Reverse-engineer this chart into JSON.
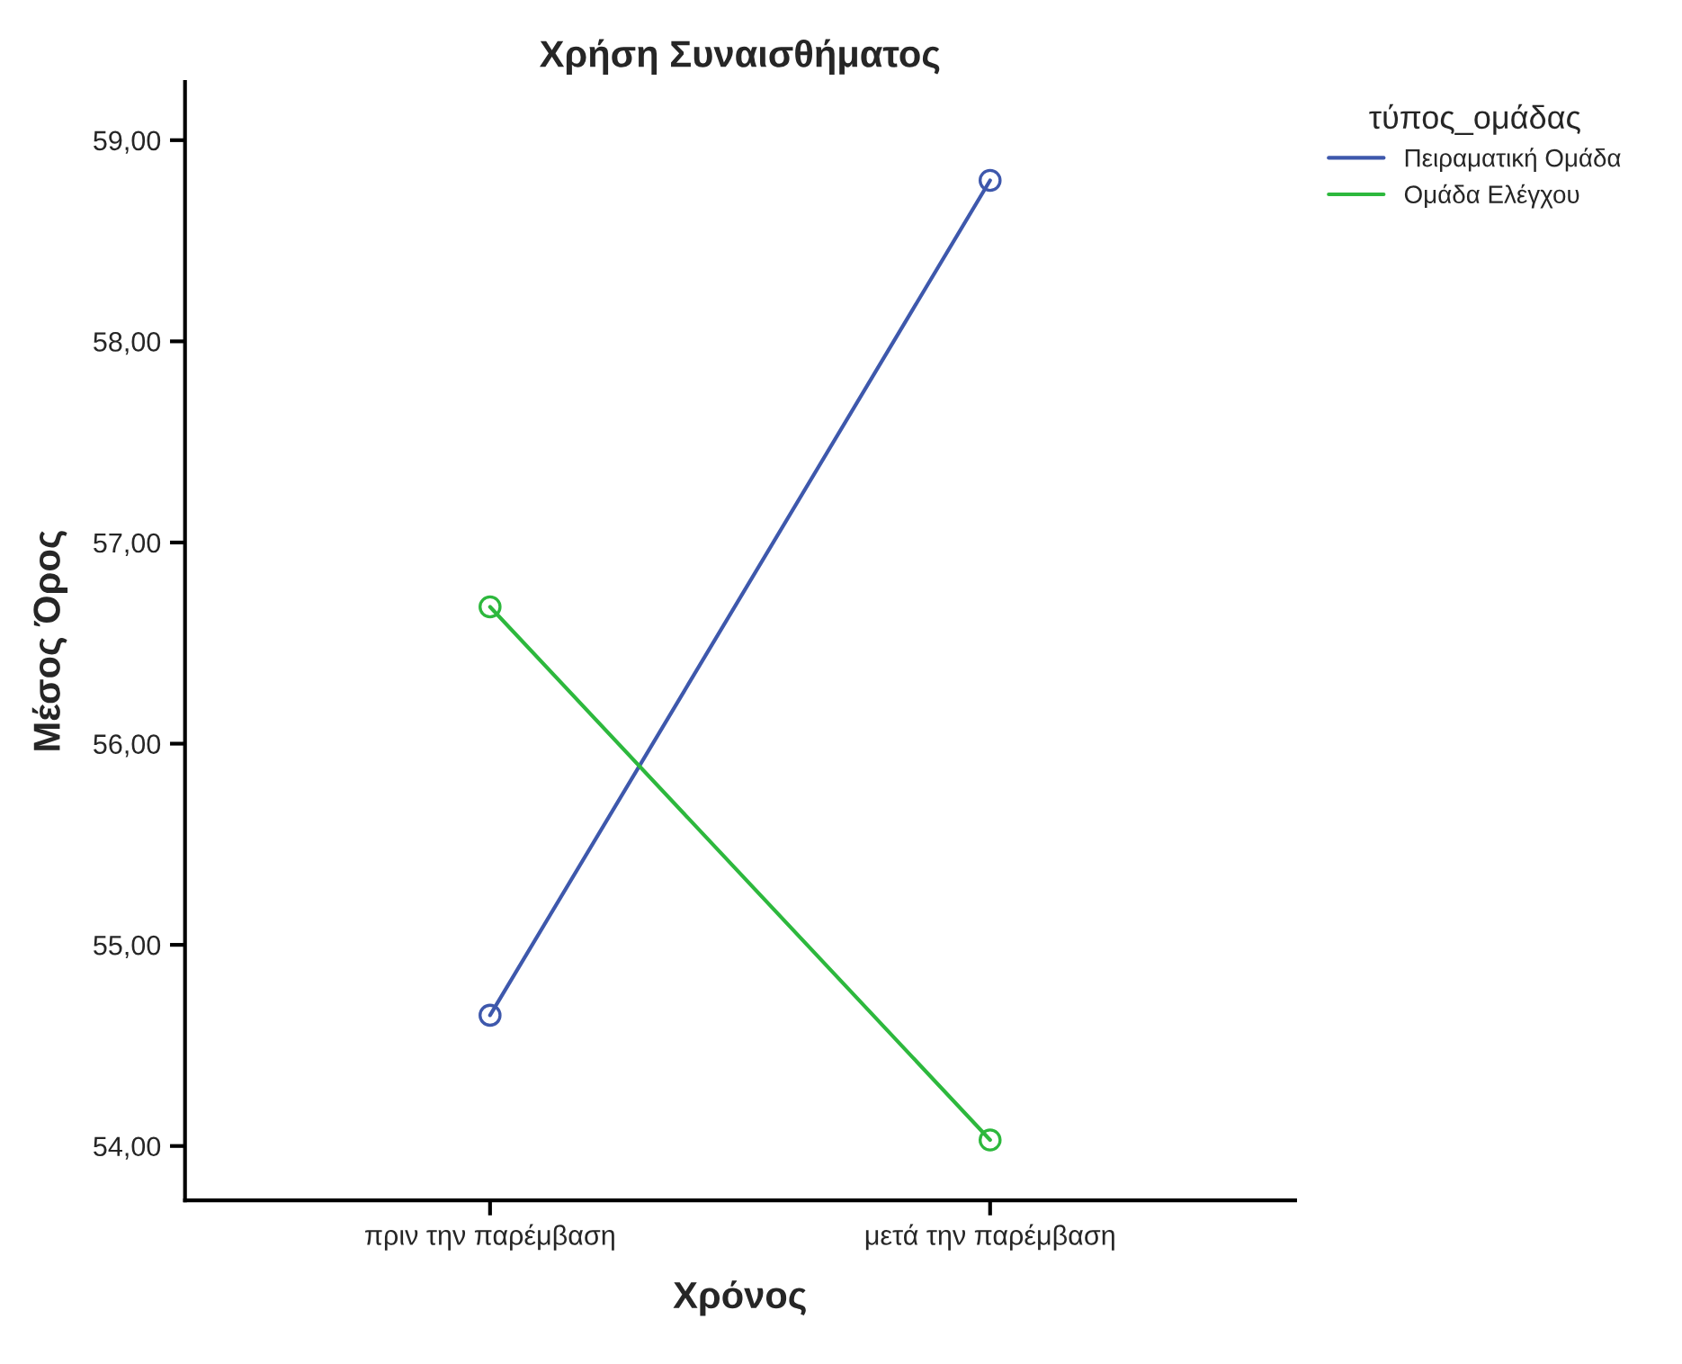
{
  "chart_data": {
    "type": "line",
    "title": "Χρήση Συναισθήματος",
    "xlabel": "Χρόνος",
    "ylabel": "Μέσος Όρος",
    "legend_title": "τύπος_ομάδας",
    "categories": [
      "πριν την παρέμβαση",
      "μετά την παρέμβαση"
    ],
    "series": [
      {
        "name": "Πειραματική Ομάδα",
        "color": "#3e58ac",
        "values": [
          54.65,
          58.8
        ]
      },
      {
        "name": "Ομάδα Ελέγχου",
        "color": "#2db83d",
        "values": [
          56.68,
          54.03
        ]
      }
    ],
    "ylim": [
      53.73,
      59.29
    ],
    "yticks": [
      {
        "value": 54,
        "label": "54,00"
      },
      {
        "value": 55,
        "label": "55,00"
      },
      {
        "value": 56,
        "label": "56,00"
      },
      {
        "value": 57,
        "label": "57,00"
      },
      {
        "value": 58,
        "label": "58,00"
      },
      {
        "value": 59,
        "label": "59,00"
      }
    ],
    "marker": "circle",
    "legend": "top right",
    "grid": false
  }
}
